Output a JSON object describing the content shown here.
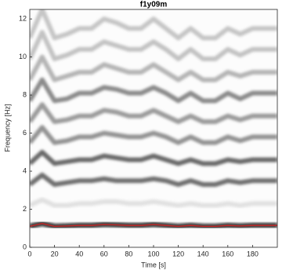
{
  "chart_data": {
    "type": "spectrogram",
    "title": "f1y09m",
    "xlabel": "Time [s]",
    "ylabel": "Frequency [Hz]",
    "xlim": [
      0,
      200
    ],
    "ylim": [
      0,
      12.5
    ],
    "xticks": [
      0,
      20,
      40,
      60,
      80,
      100,
      120,
      140,
      160,
      180
    ],
    "yticks": [
      0,
      2,
      4,
      6,
      8,
      10,
      12
    ],
    "x": [
      0,
      10,
      20,
      30,
      40,
      50,
      60,
      70,
      80,
      90,
      100,
      110,
      120,
      130,
      140,
      150,
      160,
      170,
      180,
      190,
      200
    ],
    "series": [
      {
        "color": "#c62828",
        "values": [
          1.1,
          1.25,
          1.1,
          1.12,
          1.15,
          1.15,
          1.2,
          1.18,
          1.15,
          1.15,
          1.2,
          1.15,
          1.1,
          1.15,
          1.1,
          1.1,
          1.15,
          1.12,
          1.15,
          1.15,
          1.15
        ]
      },
      {
        "color": "#dcdcdc",
        "values": [
          2.2,
          2.5,
          2.2,
          2.2,
          2.3,
          2.3,
          2.4,
          2.4,
          2.3,
          2.3,
          2.4,
          2.3,
          2.2,
          2.3,
          2.2,
          2.2,
          2.3,
          2.2,
          2.3,
          2.3,
          2.3
        ]
      },
      {
        "color": "#555555",
        "values": [
          3.3,
          3.8,
          3.3,
          3.4,
          3.5,
          3.5,
          3.6,
          3.5,
          3.5,
          3.5,
          3.6,
          3.5,
          3.3,
          3.5,
          3.3,
          3.3,
          3.5,
          3.4,
          3.5,
          3.5,
          3.5
        ]
      },
      {
        "color": "#505050",
        "values": [
          4.4,
          5.0,
          4.4,
          4.5,
          4.6,
          4.6,
          4.8,
          4.7,
          4.6,
          4.6,
          4.8,
          4.6,
          4.4,
          4.6,
          4.4,
          4.4,
          4.6,
          4.5,
          4.6,
          4.6,
          4.6
        ]
      },
      {
        "color": "#808080",
        "values": [
          5.5,
          6.3,
          5.5,
          5.6,
          5.8,
          5.8,
          6.0,
          5.9,
          5.8,
          5.8,
          6.0,
          5.8,
          5.5,
          5.8,
          5.5,
          5.5,
          5.8,
          5.6,
          5.8,
          5.8,
          5.8
        ]
      },
      {
        "color": "#8a8a8a",
        "values": [
          6.6,
          7.5,
          6.6,
          6.7,
          6.9,
          6.9,
          7.2,
          7.1,
          6.9,
          6.9,
          7.2,
          6.9,
          6.6,
          6.9,
          6.6,
          6.6,
          6.9,
          6.7,
          6.9,
          6.9,
          6.9
        ]
      },
      {
        "color": "#777777",
        "values": [
          7.7,
          8.8,
          7.7,
          7.8,
          8.1,
          8.1,
          8.4,
          8.3,
          8.1,
          8.1,
          8.4,
          8.1,
          7.7,
          8.1,
          7.7,
          7.7,
          8.1,
          7.8,
          8.1,
          8.1,
          8.1
        ]
      },
      {
        "color": "#a8a8a8",
        "values": [
          8.8,
          10.0,
          8.8,
          9.0,
          9.2,
          9.2,
          9.6,
          9.4,
          9.2,
          9.2,
          9.6,
          9.2,
          8.8,
          9.2,
          8.8,
          8.8,
          9.2,
          9.0,
          9.2,
          9.2,
          9.2
        ]
      },
      {
        "color": "#b8b8b8",
        "values": [
          9.9,
          11.3,
          9.9,
          10.1,
          10.4,
          10.4,
          10.8,
          10.6,
          10.4,
          10.4,
          10.8,
          10.4,
          9.9,
          10.4,
          9.9,
          9.9,
          10.4,
          10.1,
          10.4,
          10.4,
          10.4
        ]
      },
      {
        "color": "#bcbcbc",
        "values": [
          11.0,
          12.5,
          11.0,
          11.2,
          11.5,
          11.5,
          12.0,
          11.8,
          11.5,
          11.5,
          12.0,
          11.5,
          11.0,
          11.5,
          11.0,
          11.0,
          11.5,
          11.2,
          11.5,
          11.5,
          11.5
        ]
      }
    ]
  }
}
